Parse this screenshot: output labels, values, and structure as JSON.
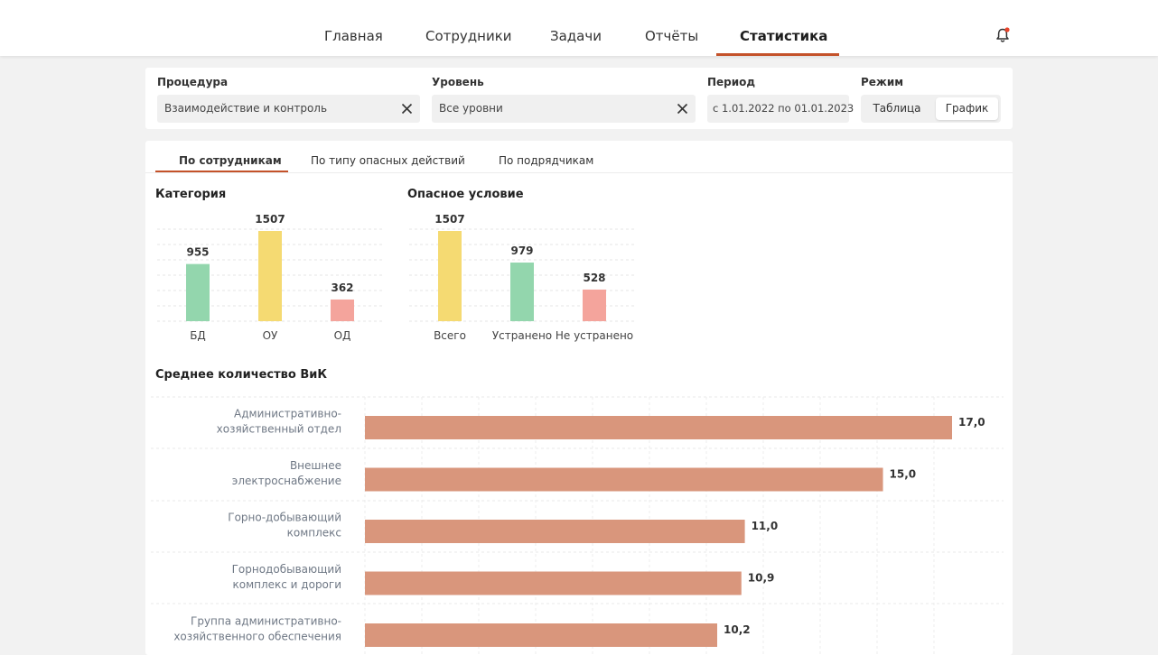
{
  "nav": {
    "items": [
      "Главная",
      "Сотрудники",
      "Задачи",
      "Отчёты",
      "Статистика"
    ],
    "active_index": 4,
    "accent": "#c4522a"
  },
  "filters": {
    "procedure": {
      "label": "Процедура",
      "value": "Взаимодействие и контроль"
    },
    "level": {
      "label": "Уровень",
      "value": "Все уровни"
    },
    "period": {
      "label": "Период",
      "value": "с 1.01.2022 по 01.01.2023"
    },
    "mode": {
      "label": "Режим",
      "options": [
        "Таблица",
        "График"
      ],
      "selected": "График"
    }
  },
  "tabs": {
    "items": [
      "По сотрудникам",
      "По типу опасных действий",
      "По подрядчикам"
    ],
    "active_index": 0
  },
  "chart_data": [
    {
      "type": "bar",
      "title": "Категория",
      "categories": [
        "БД",
        "ОУ",
        "ОД"
      ],
      "values": [
        955,
        1507,
        362
      ],
      "colors": [
        "#93d6ad",
        "#f5da72",
        "#f4a49c"
      ]
    },
    {
      "type": "bar",
      "title": "Опасное условие",
      "categories": [
        "Всего",
        "Устранено",
        "Не устранено"
      ],
      "values": [
        1507,
        979,
        528
      ],
      "colors": [
        "#f5da72",
        "#93d6ad",
        "#f4a49c"
      ]
    },
    {
      "type": "bar",
      "orientation": "horizontal",
      "title": "Среднее количество ВиК",
      "categories": [
        "Административно-хозяйственный отдел",
        "Внешнее электроснабжение",
        "Горно-добывающий комплекс",
        "Горнодобывающий комплекс и дороги",
        "Группа административно-хозяйственного обеспечения"
      ],
      "category_lines": [
        [
          "Административно-",
          "хозяйственный отдел"
        ],
        [
          "Внешнее",
          "электроснабжение"
        ],
        [
          "Горно-добывающий",
          "комплекс"
        ],
        [
          "Горнодобывающий",
          "комплекс и дороги"
        ],
        [
          "Группа административно-",
          "хозяйственного обеспечения"
        ]
      ],
      "values": [
        17.0,
        15.0,
        11.0,
        10.9,
        10.2
      ],
      "value_labels": [
        "17,0",
        "15,0",
        "11,0",
        "10,9",
        "10,2"
      ],
      "xlim": [
        0,
        17.0
      ],
      "color": "#d9967c",
      "grid": true
    }
  ]
}
